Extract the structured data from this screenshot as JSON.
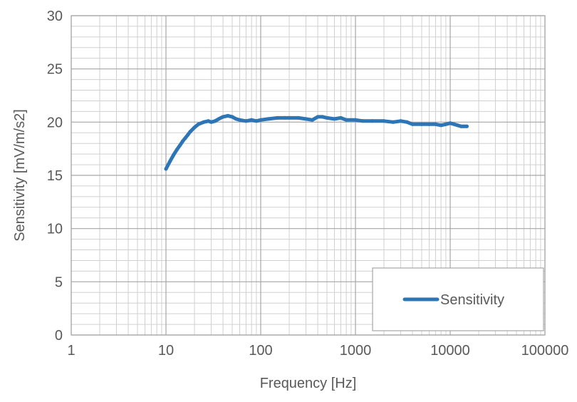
{
  "chart_data": {
    "type": "line",
    "title": "",
    "xlabel": "Frequency [Hz]",
    "ylabel": "Sensitivity [mV/m/s2]",
    "xscale": "log",
    "xlim": [
      1,
      100000
    ],
    "ylim": [
      0,
      30
    ],
    "x_tick_labels": [
      "1",
      "10",
      "100",
      "1000",
      "10000",
      "100000"
    ],
    "x_tick_values": [
      1,
      10,
      100,
      1000,
      10000,
      100000
    ],
    "y_tick_labels": [
      "0",
      "5",
      "10",
      "15",
      "20",
      "25",
      "30"
    ],
    "y_tick_values": [
      0,
      5,
      10,
      15,
      20,
      25,
      30
    ],
    "grid": true,
    "minor_grid": true,
    "legend_position": "bottom-right",
    "series": [
      {
        "name": "Sensitivity",
        "color": "#2e75b6",
        "x": [
          10,
          11,
          12,
          13,
          14,
          15,
          16,
          17,
          18,
          20,
          22,
          25,
          28,
          30,
          33,
          36,
          40,
          45,
          50,
          55,
          60,
          70,
          80,
          90,
          100,
          120,
          150,
          180,
          200,
          250,
          300,
          350,
          400,
          450,
          500,
          600,
          700,
          800,
          1000,
          1200,
          1500,
          2000,
          2500,
          3000,
          3500,
          4000,
          5000,
          6000,
          7000,
          8000,
          9000,
          10000,
          11000,
          12000,
          13000,
          14000,
          15000
        ],
        "values": [
          15.6,
          16.3,
          16.9,
          17.4,
          17.8,
          18.2,
          18.5,
          18.8,
          19.1,
          19.5,
          19.8,
          20.0,
          20.1,
          20.0,
          20.1,
          20.3,
          20.5,
          20.6,
          20.5,
          20.3,
          20.2,
          20.1,
          20.2,
          20.1,
          20.2,
          20.3,
          20.4,
          20.4,
          20.4,
          20.4,
          20.3,
          20.2,
          20.5,
          20.5,
          20.4,
          20.3,
          20.4,
          20.2,
          20.2,
          20.1,
          20.1,
          20.1,
          20.0,
          20.1,
          20.0,
          19.8,
          19.8,
          19.8,
          19.8,
          19.7,
          19.8,
          19.9,
          19.8,
          19.7,
          19.6,
          19.6,
          19.6
        ]
      }
    ]
  }
}
